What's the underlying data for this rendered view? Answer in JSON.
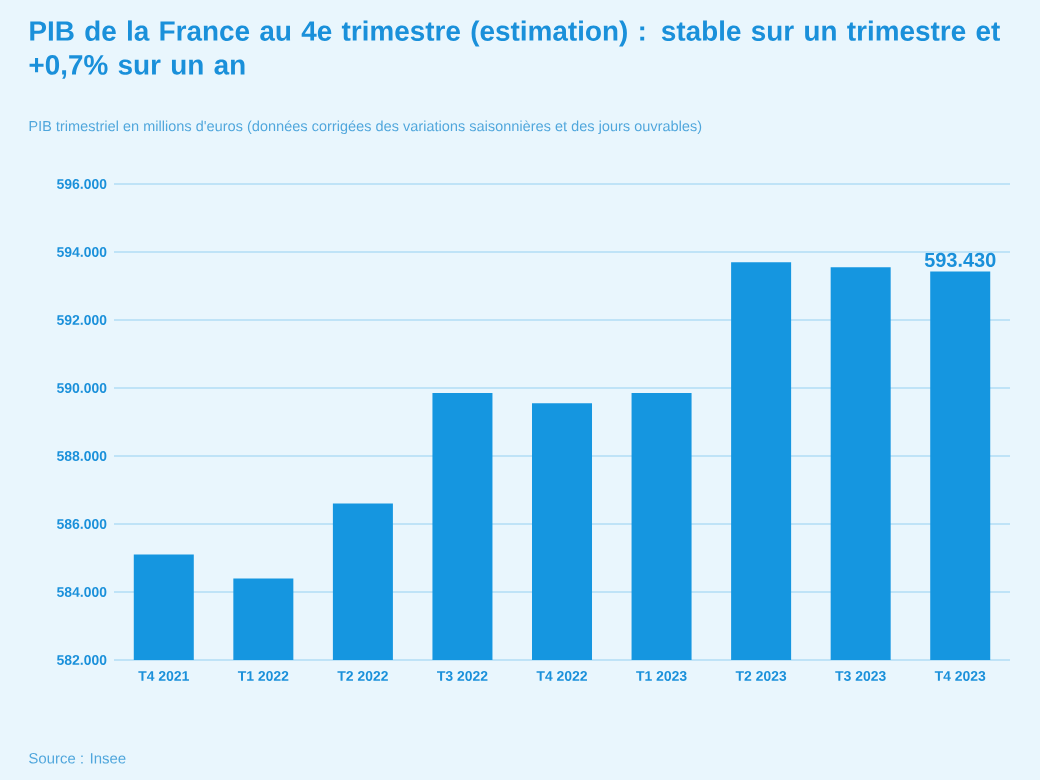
{
  "chart_data": {
    "type": "bar",
    "title": "PIB de la France au 4e trimestre (estimation) : stable sur un trimestre et +0,7% sur un an",
    "subtitle": "PIB trimestriel en millions d'euros (données corrigées des variations saisonnières et des jours ouvrables)",
    "categories": [
      "T4 2021",
      "T1 2022",
      "T2 2022",
      "T3 2022",
      "T4 2022",
      "T1 2023",
      "T2 2023",
      "T3 2023",
      "T4 2023"
    ],
    "values": [
      585100,
      584400,
      586600,
      589850,
      589550,
      589850,
      593700,
      593550,
      593430
    ],
    "value_labels": [
      null,
      null,
      null,
      null,
      null,
      null,
      null,
      null,
      "593.430"
    ],
    "color": "#1596e0",
    "ylim": [
      582000,
      596000
    ],
    "yticks": [
      {
        "value": 582000,
        "label": "582.000"
      },
      {
        "value": 584000,
        "label": "584.000"
      },
      {
        "value": 586000,
        "label": "586.000"
      },
      {
        "value": 588000,
        "label": "588.000"
      },
      {
        "value": 590000,
        "label": "590.000"
      },
      {
        "value": 592000,
        "label": "592.000"
      },
      {
        "value": 594000,
        "label": "594.000"
      },
      {
        "value": 596000,
        "label": "596.000"
      }
    ],
    "grid": "y",
    "annotations": [
      "Source : Insee"
    ]
  }
}
